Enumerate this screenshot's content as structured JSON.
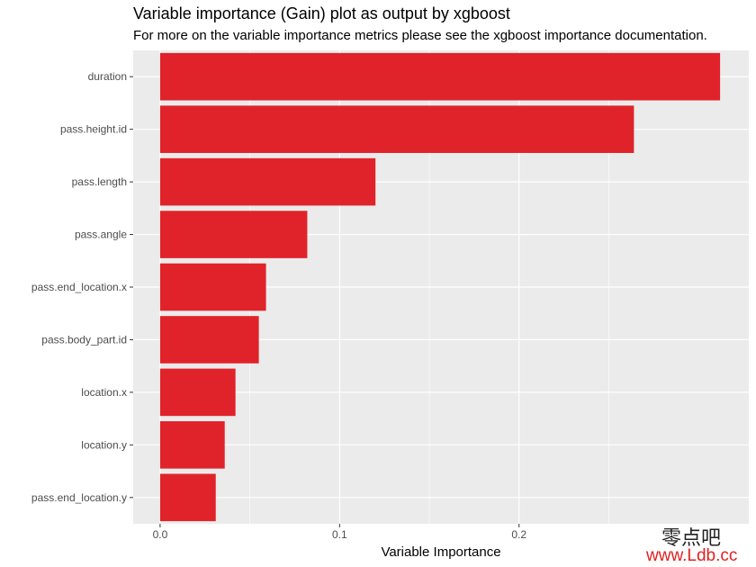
{
  "chart_data": {
    "type": "bar",
    "orientation": "horizontal",
    "title": "Variable importance (Gain) plot as output by xgboost",
    "subtitle": "For more on the variable importance metrics please see the xgboost importance documentation.",
    "xlabel": "Variable Importance",
    "ylabel": "",
    "categories": [
      "duration",
      "pass.height.id",
      "pass.length",
      "pass.angle",
      "pass.end_location.x",
      "pass.body_part.id",
      "location.x",
      "location.y",
      "pass.end_location.y"
    ],
    "values": [
      0.312,
      0.264,
      0.12,
      0.082,
      0.059,
      0.055,
      0.042,
      0.036,
      0.031
    ],
    "xlim": [
      -0.015,
      0.328
    ],
    "xticks": [
      0.0,
      0.1,
      0.2
    ],
    "xtick_labels": [
      "0.0",
      "0.1",
      "0.2"
    ],
    "grid": true,
    "bar_color": "#E0232A",
    "panel_color": "#EBEBEB"
  },
  "watermark": {
    "chinese": "零点吧",
    "url": "www.Ldb.cc"
  }
}
